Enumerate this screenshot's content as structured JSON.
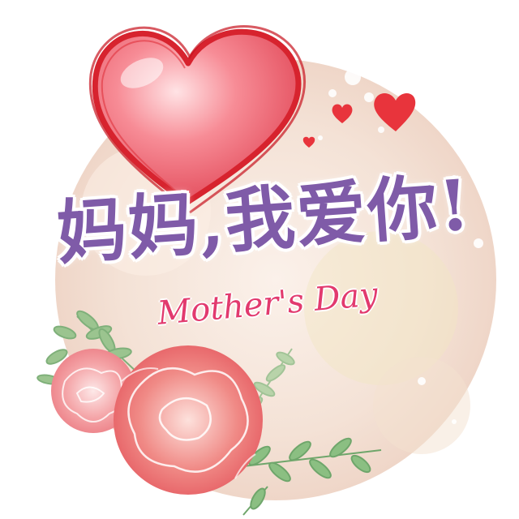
{
  "card": {
    "headline": "妈妈,我爱你!",
    "subtitle": "Mother's Day"
  },
  "colors": {
    "background": "#ffffff",
    "circle": "#f5e3d8",
    "heart_fill": "#f47a86",
    "heart_outline": "#d7232e",
    "headline": "#7f5ba8",
    "subtitle": "#e23a6e",
    "flower": "#ec6f72",
    "leaf": "#7fb07a"
  },
  "icons": [
    "big-heart-icon",
    "small-heart-icon",
    "carnation-flower-icon",
    "fern-leaf-icon"
  ]
}
